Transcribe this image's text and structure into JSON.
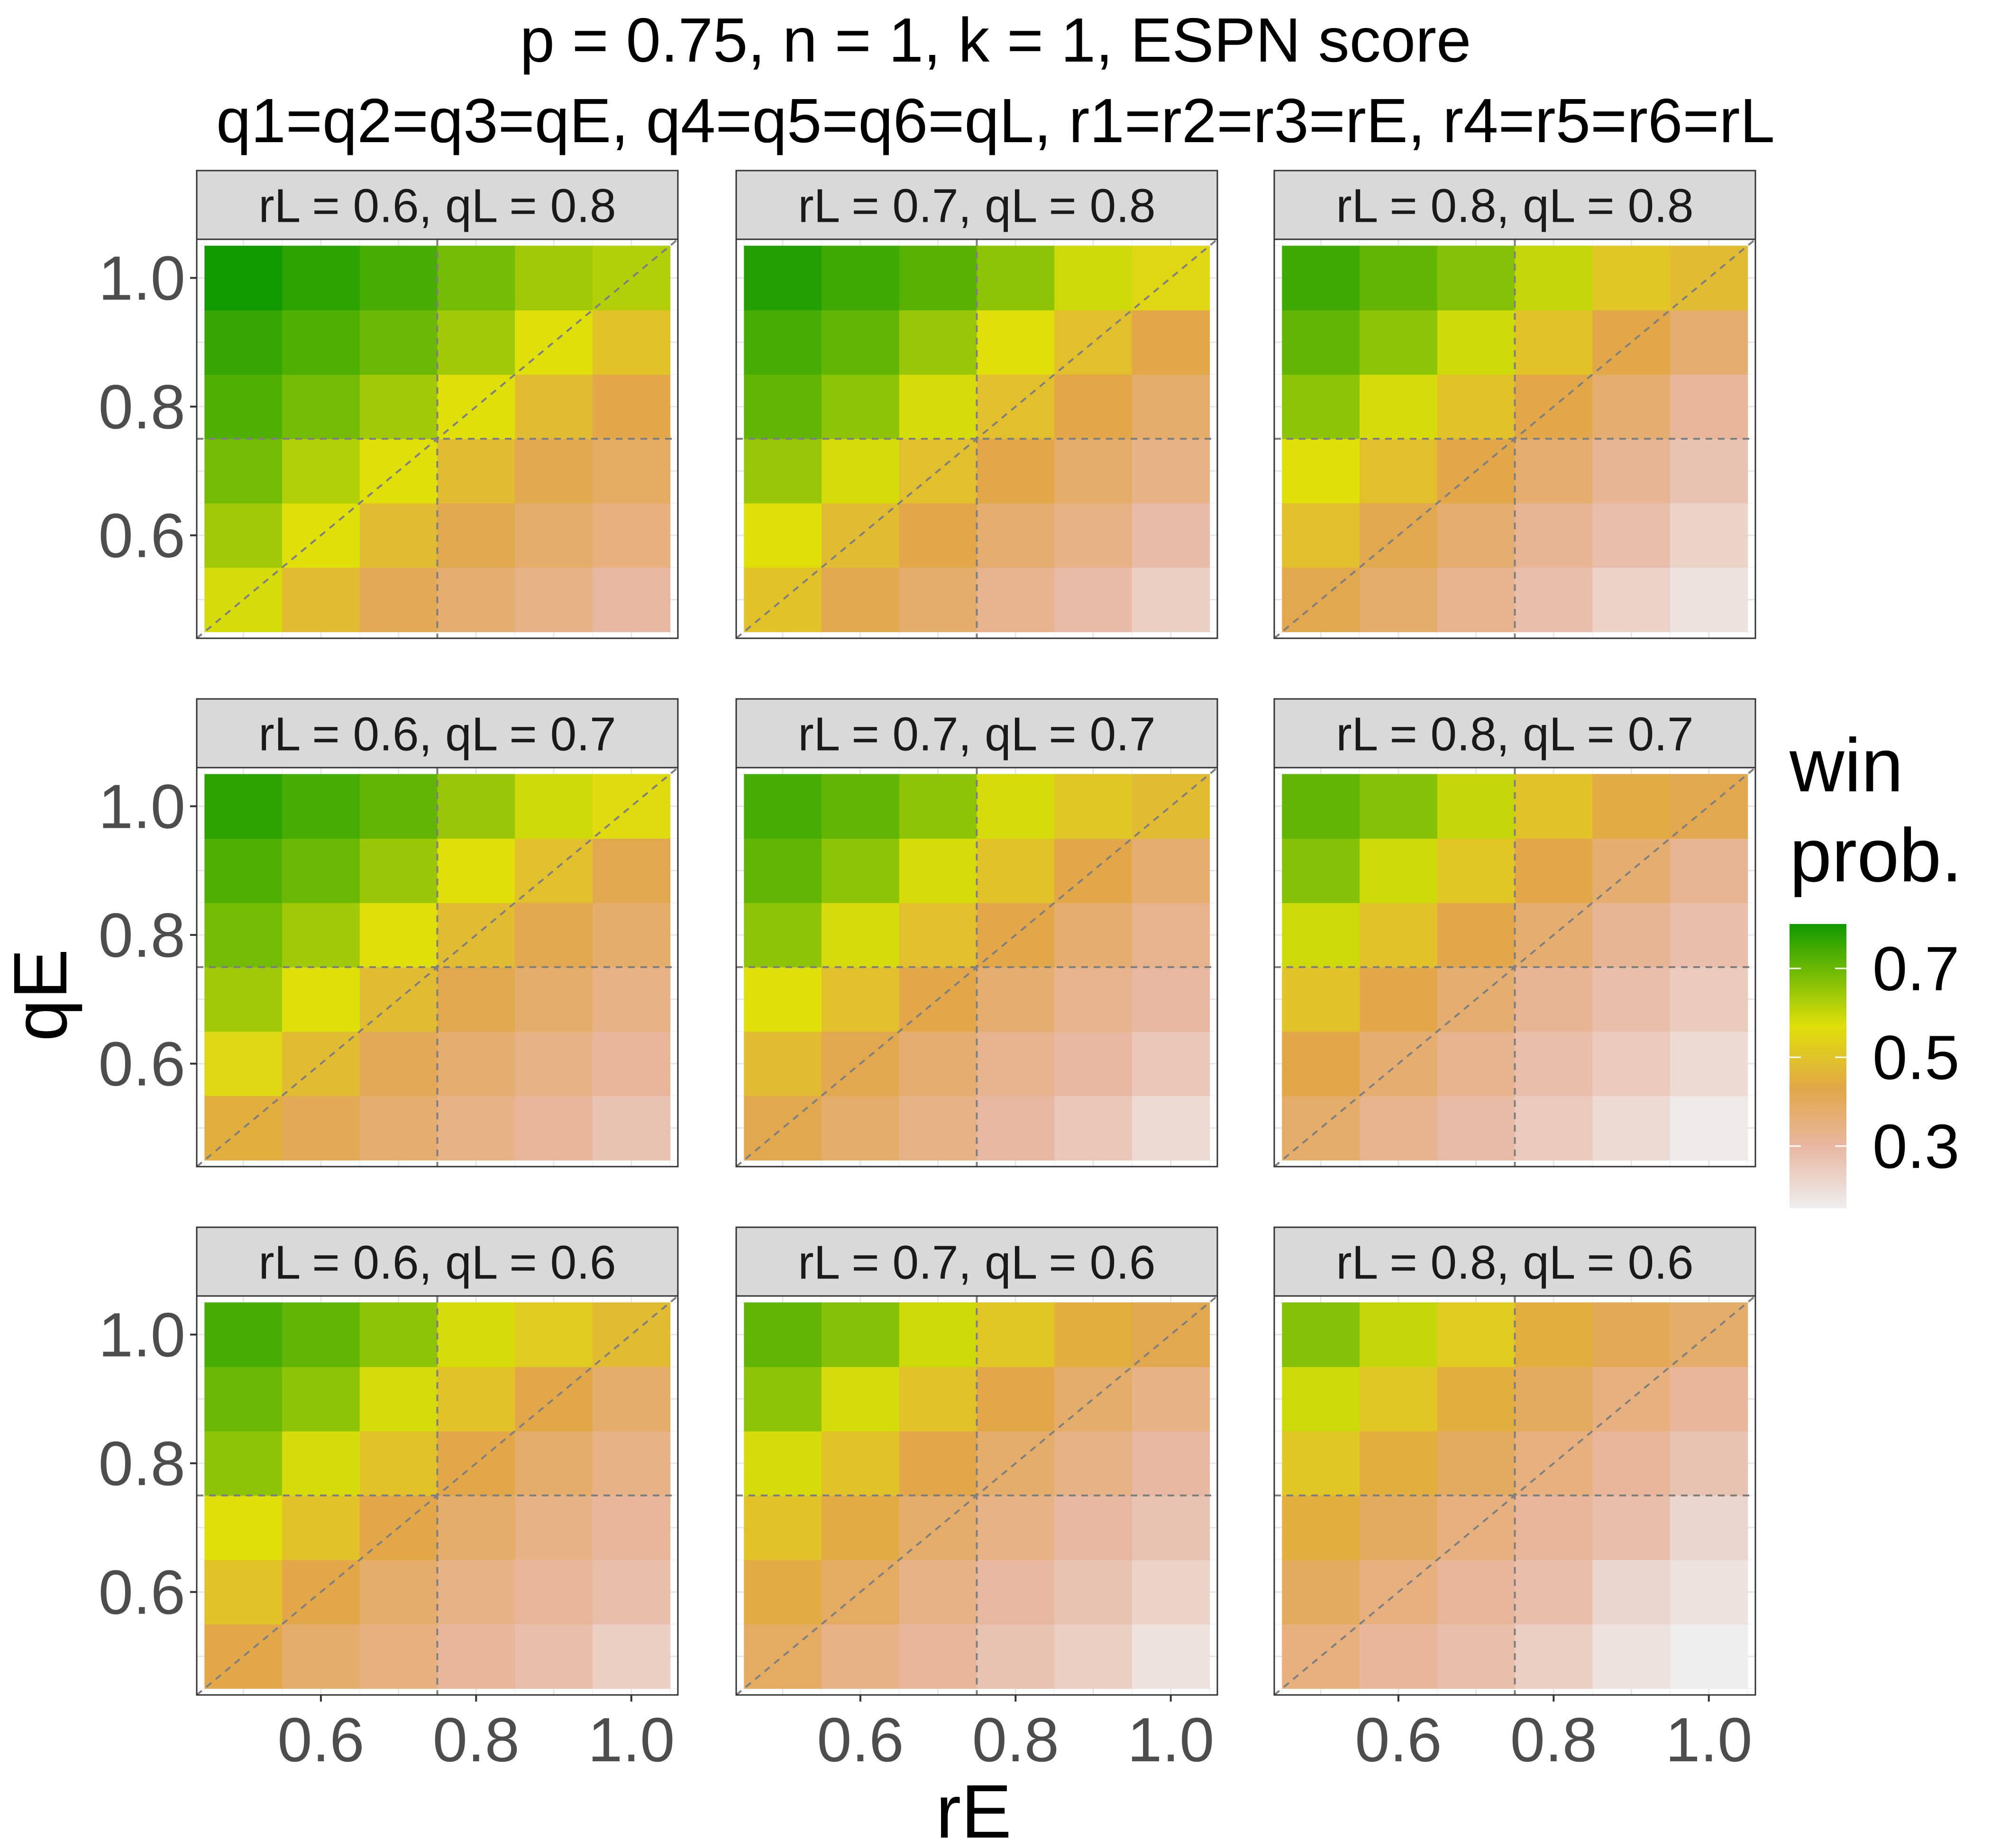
{
  "chart_data": {
    "type": "heatmap",
    "title": "p = 0.75, n = 1, k = 1, ESPN score",
    "subtitle": "q1=q2=q3=qE,  q4=q5=q6=qL, r1=r2=r3=rE,  r4=r5=r6=rL",
    "xlabel": "rE",
    "ylabel": "qE",
    "x": [
      0.5,
      0.6,
      0.7,
      0.8,
      0.9,
      1.0
    ],
    "y": [
      0.5,
      0.6,
      0.7,
      0.8,
      0.9,
      1.0
    ],
    "x_ticks": [
      0.6,
      0.8,
      1.0
    ],
    "x_tick_labels": [
      "0.6",
      "0.8",
      "1.0"
    ],
    "y_ticks": [
      0.6,
      0.8,
      1.0
    ],
    "y_tick_labels": [
      "0.6",
      "0.8",
      "1.0"
    ],
    "xlim": [
      0.44,
      1.06
    ],
    "ylim": [
      0.44,
      1.06
    ],
    "grid": true,
    "reference_lines": {
      "vertical": 0.75,
      "horizontal": 0.75,
      "diagonal": true
    },
    "legend": {
      "title_lines": [
        "win",
        "prob."
      ],
      "ticks": [
        0.7,
        0.5,
        0.3
      ],
      "tick_labels": [
        "0.7",
        "0.5",
        "0.3"
      ],
      "range": [
        0.16,
        0.8
      ],
      "position": "right",
      "gradient": [
        {
          "value": 0.16,
          "color": "#eeeeee"
        },
        {
          "value": 0.3,
          "color": "#e8b7a1"
        },
        {
          "value": 0.43,
          "color": "#e2a748"
        },
        {
          "value": 0.57,
          "color": "#dfdf0a"
        },
        {
          "value": 0.8,
          "color": "#119a00"
        }
      ]
    },
    "facets": [
      {
        "label": "rL = 0.6, qL = 0.8",
        "rL": 0.6,
        "qL": 0.8,
        "z": [
          [
            0.58,
            0.48,
            0.41,
            0.37,
            0.34,
            0.3
          ],
          [
            0.64,
            0.57,
            0.48,
            0.42,
            0.38,
            0.35
          ],
          [
            0.69,
            0.62,
            0.57,
            0.48,
            0.42,
            0.39
          ],
          [
            0.73,
            0.69,
            0.64,
            0.57,
            0.48,
            0.43
          ],
          [
            0.76,
            0.73,
            0.7,
            0.64,
            0.57,
            0.5
          ],
          [
            0.8,
            0.77,
            0.74,
            0.69,
            0.64,
            0.62
          ]
        ]
      },
      {
        "label": "rL = 0.7, qL = 0.8",
        "rL": 0.7,
        "qL": 0.8,
        "z": [
          [
            0.5,
            0.42,
            0.38,
            0.33,
            0.29,
            0.24
          ],
          [
            0.57,
            0.48,
            0.43,
            0.37,
            0.34,
            0.29
          ],
          [
            0.65,
            0.58,
            0.49,
            0.43,
            0.38,
            0.34
          ],
          [
            0.71,
            0.66,
            0.58,
            0.49,
            0.43,
            0.38
          ],
          [
            0.74,
            0.71,
            0.65,
            0.57,
            0.49,
            0.43
          ],
          [
            0.78,
            0.75,
            0.72,
            0.66,
            0.59,
            0.55
          ]
        ]
      },
      {
        "label": "rL = 0.8, qL = 0.8",
        "rL": 0.8,
        "qL": 0.8,
        "z": [
          [
            0.42,
            0.38,
            0.33,
            0.28,
            0.23,
            0.19
          ],
          [
            0.49,
            0.42,
            0.37,
            0.32,
            0.28,
            0.23
          ],
          [
            0.57,
            0.49,
            0.43,
            0.37,
            0.32,
            0.27
          ],
          [
            0.66,
            0.58,
            0.5,
            0.43,
            0.37,
            0.31
          ],
          [
            0.71,
            0.66,
            0.59,
            0.5,
            0.43,
            0.37
          ],
          [
            0.75,
            0.71,
            0.67,
            0.6,
            0.51,
            0.48
          ]
        ]
      },
      {
        "label": "rL = 0.6, qL = 0.7",
        "rL": 0.6,
        "qL": 0.7,
        "z": [
          [
            0.45,
            0.41,
            0.37,
            0.34,
            0.31,
            0.27
          ],
          [
            0.55,
            0.48,
            0.41,
            0.37,
            0.34,
            0.31
          ],
          [
            0.64,
            0.57,
            0.48,
            0.42,
            0.38,
            0.34
          ],
          [
            0.69,
            0.64,
            0.57,
            0.48,
            0.42,
            0.38
          ],
          [
            0.73,
            0.7,
            0.65,
            0.57,
            0.49,
            0.42
          ],
          [
            0.77,
            0.74,
            0.71,
            0.65,
            0.59,
            0.56
          ]
        ]
      },
      {
        "label": "rL = 0.7, qL = 0.7",
        "rL": 0.7,
        "qL": 0.7,
        "z": [
          [
            0.42,
            0.38,
            0.34,
            0.3,
            0.26,
            0.21
          ],
          [
            0.48,
            0.42,
            0.37,
            0.33,
            0.3,
            0.26
          ],
          [
            0.57,
            0.49,
            0.43,
            0.37,
            0.33,
            0.3
          ],
          [
            0.66,
            0.58,
            0.49,
            0.43,
            0.37,
            0.33
          ],
          [
            0.71,
            0.66,
            0.58,
            0.5,
            0.43,
            0.37
          ],
          [
            0.74,
            0.71,
            0.66,
            0.58,
            0.51,
            0.48
          ]
        ]
      },
      {
        "label": "rL = 0.8, qL = 0.7",
        "rL": 0.8,
        "qL": 0.7,
        "z": [
          [
            0.38,
            0.33,
            0.29,
            0.25,
            0.21,
            0.17
          ],
          [
            0.43,
            0.37,
            0.33,
            0.28,
            0.25,
            0.21
          ],
          [
            0.5,
            0.43,
            0.37,
            0.32,
            0.28,
            0.25
          ],
          [
            0.59,
            0.5,
            0.43,
            0.37,
            0.32,
            0.28
          ],
          [
            0.67,
            0.59,
            0.51,
            0.43,
            0.37,
            0.32
          ],
          [
            0.71,
            0.67,
            0.6,
            0.5,
            0.44,
            0.42
          ]
        ]
      },
      {
        "label": "rL = 0.6, qL = 0.6",
        "rL": 0.6,
        "qL": 0.6,
        "z": [
          [
            0.43,
            0.38,
            0.35,
            0.31,
            0.28,
            0.24
          ],
          [
            0.5,
            0.43,
            0.38,
            0.34,
            0.31,
            0.28
          ],
          [
            0.57,
            0.5,
            0.43,
            0.38,
            0.34,
            0.31
          ],
          [
            0.66,
            0.58,
            0.5,
            0.43,
            0.38,
            0.34
          ],
          [
            0.7,
            0.66,
            0.58,
            0.5,
            0.43,
            0.38
          ],
          [
            0.74,
            0.71,
            0.66,
            0.58,
            0.52,
            0.48
          ]
        ]
      },
      {
        "label": "rL = 0.7, qL = 0.6",
        "rL": 0.7,
        "qL": 0.6,
        "z": [
          [
            0.39,
            0.34,
            0.31,
            0.27,
            0.24,
            0.19
          ],
          [
            0.44,
            0.39,
            0.34,
            0.3,
            0.27,
            0.23
          ],
          [
            0.5,
            0.44,
            0.38,
            0.34,
            0.3,
            0.27
          ],
          [
            0.58,
            0.5,
            0.43,
            0.38,
            0.34,
            0.3
          ],
          [
            0.66,
            0.58,
            0.5,
            0.43,
            0.38,
            0.34
          ],
          [
            0.71,
            0.67,
            0.59,
            0.51,
            0.45,
            0.42
          ]
        ]
      },
      {
        "label": "rL = 0.8, qL = 0.6",
        "rL": 0.8,
        "qL": 0.6,
        "z": [
          [
            0.35,
            0.31,
            0.28,
            0.24,
            0.19,
            0.16
          ],
          [
            0.4,
            0.35,
            0.31,
            0.28,
            0.22,
            0.19
          ],
          [
            0.45,
            0.4,
            0.35,
            0.31,
            0.28,
            0.22
          ],
          [
            0.51,
            0.45,
            0.4,
            0.35,
            0.31,
            0.27
          ],
          [
            0.59,
            0.51,
            0.45,
            0.4,
            0.35,
            0.31
          ],
          [
            0.67,
            0.6,
            0.52,
            0.45,
            0.41,
            0.38
          ]
        ]
      }
    ]
  }
}
